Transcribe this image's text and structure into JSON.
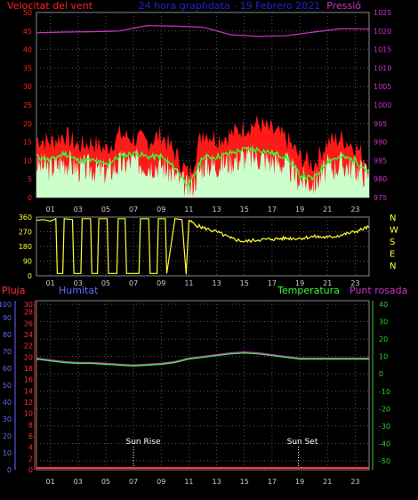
{
  "header": {
    "left_label": "Velocitat del vent",
    "center_label": "24 hora graphdata - 19 Febrero 2021",
    "right_label": "Pressió"
  },
  "wind_panel": {
    "left_ticks": [
      0,
      5,
      10,
      15,
      20,
      25,
      30,
      35,
      40,
      45,
      50
    ],
    "right_ticks": [
      975,
      980,
      985,
      990,
      995,
      1000,
      1005,
      1010,
      1015,
      1020,
      1025
    ],
    "hour_labels": [
      "01",
      "03",
      "05",
      "07",
      "09",
      "11",
      "13",
      "15",
      "17",
      "19",
      "21",
      "23"
    ]
  },
  "direction_panel": {
    "left_ticks": [
      0,
      90,
      180,
      270,
      360
    ],
    "compass_labels": [
      "N",
      "W",
      "S",
      "E",
      "N"
    ],
    "hour_labels": [
      "01",
      "03",
      "05",
      "07",
      "09",
      "11",
      "13",
      "15",
      "17",
      "19",
      "21",
      "23"
    ]
  },
  "bottom_panel": {
    "label_rain": "Pluja",
    "label_humidity": "Humitat",
    "label_temperature": "Temperatura",
    "label_dewpoint": "Punt rosada",
    "humidity_ticks": [
      0,
      10,
      20,
      30,
      40,
      50,
      60,
      70,
      80,
      90,
      100
    ],
    "rain_ticks": [
      0,
      2,
      4,
      6,
      8,
      10,
      12,
      14,
      16,
      18,
      20,
      22,
      24,
      26,
      28,
      30
    ],
    "temp_ticks": [
      40,
      30,
      20,
      10,
      0,
      -10,
      -20,
      -30,
      -40,
      -50
    ],
    "sunrise_label": "Sun Rise",
    "sunset_label": "Sun Set",
    "hour_labels": [
      "01",
      "03",
      "05",
      "07",
      "09",
      "11",
      "13",
      "15",
      "17",
      "19",
      "21",
      "23"
    ]
  },
  "colors": {
    "gust": "#ff1a1a",
    "avg_wind": "#33ff33",
    "speed": "#ccffcc",
    "pressure": "#cc33cc",
    "direction": "#ffff33",
    "temperature": "#33ff33",
    "dewpoint": "#cc33cc",
    "rain": "#ff3333",
    "humidity_axis": "#6666ff",
    "temp_axis": "#33cc33",
    "rain_axis": "#ff3333"
  },
  "chart_data": [
    {
      "type": "area",
      "series": [
        {
          "name": "Velocitat del vent",
          "axis": "left",
          "x": [
            0,
            1,
            2,
            3,
            4,
            5,
            6,
            7,
            8,
            9,
            10,
            11,
            12,
            13,
            14,
            15,
            16,
            17,
            18,
            19,
            20,
            21,
            22,
            23,
            24
          ],
          "gust": [
            16,
            15,
            17,
            14,
            15,
            13,
            17,
            16,
            15,
            17,
            12,
            6,
            18,
            16,
            17,
            19,
            20,
            18,
            16,
            11,
            9,
            15,
            16,
            14,
            9
          ],
          "avg": [
            11,
            10,
            12,
            10,
            10,
            9,
            11,
            12,
            11,
            11,
            8,
            3,
            11,
            11,
            12,
            13,
            13,
            12,
            11,
            6,
            5,
            10,
            11,
            10,
            7
          ],
          "speed": [
            9,
            8,
            10,
            8,
            8,
            7,
            9,
            10,
            9,
            9,
            6,
            2,
            9,
            9,
            10,
            11,
            11,
            10,
            9,
            5,
            4,
            8,
            9,
            8,
            6
          ]
        },
        {
          "name": "Pressió",
          "axis": "right",
          "x": [
            0,
            2,
            4,
            6,
            8,
            10,
            12,
            14,
            16,
            18,
            20,
            22,
            24
          ],
          "y": [
            1019.5,
            1019.7,
            1019.8,
            1020.0,
            1021.5,
            1021.3,
            1021.0,
            1019.0,
            1018.5,
            1018.7,
            1019.7,
            1020.6,
            1020.5
          ]
        }
      ],
      "xlim": [
        0,
        24
      ],
      "ylim": [
        0,
        50
      ],
      "y2lim": [
        975,
        1025
      ]
    },
    {
      "type": "line",
      "series": [
        {
          "axis": "left",
          "x": [
            0,
            0.5,
            1,
            1.4,
            1.5,
            1.9,
            2,
            2.6,
            2.7,
            3.2,
            3.3,
            3.9,
            4,
            4.4,
            4.5,
            5.1,
            5.2,
            5.8,
            5.9,
            6.4,
            6.5,
            7.4,
            7.5,
            8.1,
            8.2,
            8.7,
            8.8,
            9.3,
            9.4,
            10,
            10.5,
            10.8,
            11,
            11.5,
            12,
            13,
            14,
            15,
            16,
            17,
            18,
            19,
            20,
            21,
            22,
            23,
            24
          ],
          "y": [
            340,
            345,
            335,
            350,
            15,
            15,
            350,
            345,
            15,
            15,
            350,
            350,
            15,
            15,
            350,
            350,
            15,
            15,
            350,
            350,
            15,
            15,
            350,
            350,
            15,
            15,
            350,
            350,
            15,
            350,
            345,
            10,
            340,
            310,
            295,
            270,
            230,
            210,
            220,
            225,
            230,
            230,
            240,
            235,
            250,
            270,
            300
          ]
        }
      ],
      "xlim": [
        0,
        24
      ],
      "ylim": [
        0,
        360
      ]
    },
    {
      "type": "line",
      "series": [
        {
          "name": "Temperatura",
          "axis": "right",
          "x": [
            0,
            1,
            2,
            3,
            4,
            5,
            6,
            7,
            8,
            9,
            10,
            11,
            12,
            13,
            14,
            15,
            16,
            17,
            18,
            19,
            20,
            21,
            22,
            23,
            24
          ],
          "y": [
            9,
            8,
            7,
            6.5,
            6.5,
            6,
            5.5,
            5,
            5.5,
            6,
            7,
            9,
            10,
            11,
            12,
            12.5,
            12,
            11,
            10,
            9,
            9,
            9,
            9,
            9,
            9
          ]
        },
        {
          "name": "Punt rosada",
          "axis": "right",
          "x": [
            0,
            1,
            2,
            3,
            4,
            5,
            6,
            7,
            8,
            9,
            10,
            11,
            12,
            13,
            14,
            15,
            16,
            17,
            18,
            19,
            20,
            21,
            22,
            23,
            24
          ],
          "y": [
            9,
            8,
            7,
            6.5,
            6.5,
            6,
            5.5,
            5,
            5.5,
            6,
            7,
            9,
            10,
            11,
            12,
            12.5,
            12,
            11,
            10,
            9,
            9,
            9,
            9,
            9,
            9
          ]
        },
        {
          "name": "Pluja",
          "axis": "left",
          "x": [
            0,
            24
          ],
          "y": [
            0,
            0
          ]
        }
      ],
      "xlim": [
        0,
        24
      ],
      "y2lim": [
        -50,
        40
      ],
      "sunrise_hour": 7.0,
      "sunset_hour": 18.9
    }
  ]
}
